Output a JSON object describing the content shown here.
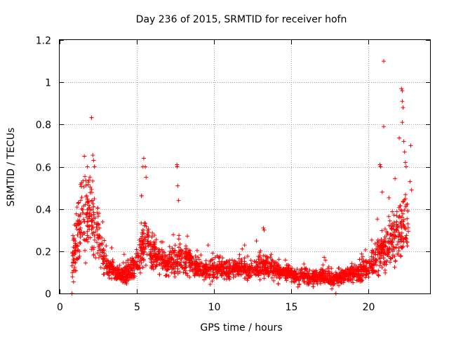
{
  "chart_data": {
    "type": "scatter",
    "title": "Day 236 of 2015, SRMTID for receiver hofn",
    "xlabel": "GPS time / hours",
    "ylabel": "SRMTID / TECUs",
    "xlim": [
      0,
      24
    ],
    "ylim": [
      0,
      1.2
    ],
    "grid": true,
    "marker": "+",
    "series_color": "#ff0000",
    "xticks": [
      0,
      5,
      10,
      15,
      20
    ],
    "xtick_labels": [
      "0",
      "5",
      "10",
      "15",
      "20"
    ],
    "yticks": [
      0,
      0.2,
      0.4,
      0.6,
      0.8,
      1,
      1.2
    ],
    "ytick_labels": [
      "0",
      "0.2",
      "0.4",
      "0.6",
      "0.8",
      "1",
      "1.2"
    ],
    "envelope": {
      "description": "approximate median level and spread of the dense point cloud vs GPS hour",
      "t": [
        0.8,
        1.0,
        1.3,
        1.6,
        1.9,
        2.2,
        2.5,
        2.8,
        3.2,
        3.6,
        4.0,
        4.5,
        5.0,
        5.3,
        5.6,
        5.9,
        6.3,
        6.8,
        7.3,
        7.8,
        8.3,
        8.8,
        9.5,
        10.0,
        10.5,
        11.0,
        11.5,
        12.0,
        12.5,
        13.0,
        13.5,
        14.0,
        14.5,
        15.0,
        15.5,
        16.0,
        16.5,
        17.0,
        17.5,
        18.0,
        18.5,
        19.0,
        19.5,
        20.0,
        20.4,
        20.8,
        21.2,
        21.6,
        22.0,
        22.3,
        22.6
      ],
      "median": [
        0.15,
        0.22,
        0.32,
        0.38,
        0.36,
        0.34,
        0.26,
        0.17,
        0.12,
        0.1,
        0.09,
        0.1,
        0.14,
        0.2,
        0.26,
        0.2,
        0.17,
        0.15,
        0.15,
        0.16,
        0.16,
        0.13,
        0.11,
        0.11,
        0.12,
        0.11,
        0.12,
        0.11,
        0.11,
        0.13,
        0.13,
        0.11,
        0.1,
        0.09,
        0.08,
        0.08,
        0.08,
        0.08,
        0.07,
        0.08,
        0.08,
        0.09,
        0.1,
        0.12,
        0.15,
        0.2,
        0.22,
        0.26,
        0.3,
        0.32,
        0.3
      ],
      "spread": [
        0.06,
        0.1,
        0.14,
        0.15,
        0.15,
        0.14,
        0.1,
        0.06,
        0.04,
        0.03,
        0.03,
        0.04,
        0.05,
        0.09,
        0.1,
        0.07,
        0.05,
        0.05,
        0.06,
        0.06,
        0.05,
        0.04,
        0.035,
        0.035,
        0.035,
        0.035,
        0.035,
        0.035,
        0.035,
        0.04,
        0.04,
        0.035,
        0.03,
        0.03,
        0.03,
        0.03,
        0.03,
        0.03,
        0.03,
        0.03,
        0.03,
        0.03,
        0.035,
        0.04,
        0.06,
        0.08,
        0.1,
        0.1,
        0.12,
        0.12,
        0.1
      ]
    },
    "notable_points": [
      {
        "x": 0.8,
        "y": 0.0
      },
      {
        "x": 0.9,
        "y": 0.055
      },
      {
        "x": 1.6,
        "y": 0.65
      },
      {
        "x": 1.8,
        "y": 0.6
      },
      {
        "x": 2.15,
        "y": 0.655
      },
      {
        "x": 2.2,
        "y": 0.63
      },
      {
        "x": 2.25,
        "y": 0.6
      },
      {
        "x": 5.45,
        "y": 0.64
      },
      {
        "x": 5.4,
        "y": 0.6
      },
      {
        "x": 5.55,
        "y": 0.6
      },
      {
        "x": 5.6,
        "y": 0.55
      },
      {
        "x": 7.6,
        "y": 0.61
      },
      {
        "x": 7.62,
        "y": 0.6
      },
      {
        "x": 7.65,
        "y": 0.51
      },
      {
        "x": 7.7,
        "y": 0.44
      },
      {
        "x": 13.2,
        "y": 0.31
      },
      {
        "x": 13.25,
        "y": 0.3
      },
      {
        "x": 17.9,
        "y": 0.0
      },
      {
        "x": 20.75,
        "y": 0.61
      },
      {
        "x": 20.8,
        "y": 0.6
      },
      {
        "x": 20.9,
        "y": 0.48
      },
      {
        "x": 21.0,
        "y": 1.1
      },
      {
        "x": 21.0,
        "y": 0.79
      },
      {
        "x": 22.15,
        "y": 0.97
      },
      {
        "x": 22.2,
        "y": 0.96
      },
      {
        "x": 22.2,
        "y": 0.91
      },
      {
        "x": 22.25,
        "y": 0.88
      },
      {
        "x": 22.2,
        "y": 0.81
      },
      {
        "x": 22.3,
        "y": 0.72
      },
      {
        "x": 22.35,
        "y": 0.67
      },
      {
        "x": 22.4,
        "y": 0.62
      },
      {
        "x": 22.45,
        "y": 0.6
      },
      {
        "x": 22.7,
        "y": 0.53
      },
      {
        "x": 22.75,
        "y": 0.7
      },
      {
        "x": 22.8,
        "y": 0.49
      }
    ],
    "n_cloud_points": 2600,
    "cloud_seed": 236
  }
}
